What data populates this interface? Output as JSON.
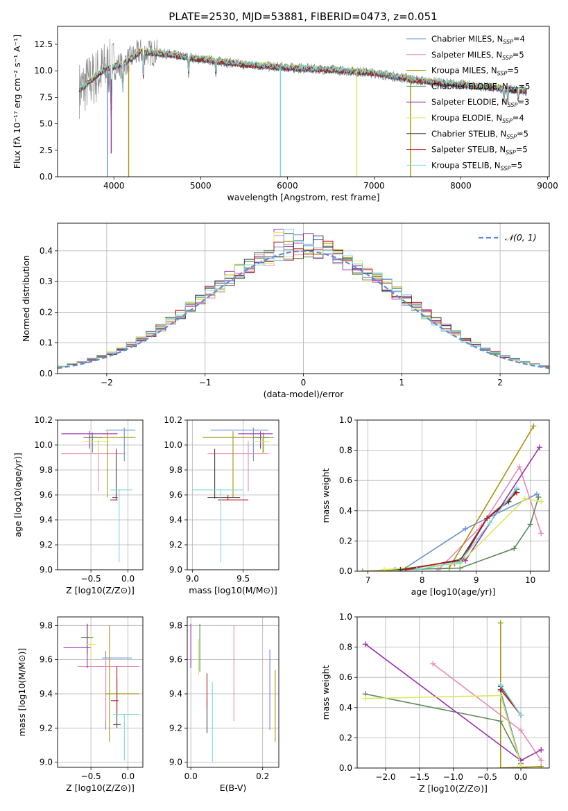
{
  "figure": {
    "title": "PLATE=2530, MJD=53881, FIBERID=0473, z=0.051"
  },
  "chart_data": [
    {
      "id": "spectrum",
      "type": "line",
      "title": "PLATE=2530, MJD=53881, FIBERID=0473, z=0.051",
      "xlabel": "wavelength [Angstrom, rest frame]",
      "ylabel": "Flux [fλ 10⁻¹⁷ erg cm⁻² s⁻¹ A⁻¹]",
      "xlim": [
        3350,
        9020
      ],
      "ylim": [
        0,
        14.2
      ],
      "xticks": [
        4000,
        5000,
        6000,
        7000,
        8000,
        9000
      ],
      "yticks": [
        0.0,
        2.5,
        5.0,
        7.5,
        10.0,
        12.5
      ],
      "grid": false,
      "legend_position": "upper-right",
      "series": [
        {
          "name": "Chabrier MILES, N_SSP=4",
          "color": "#6a8fd6"
        },
        {
          "name": "Salpeter MILES, N_SSP=5",
          "color": "#e889b6"
        },
        {
          "name": "Kroupa MILES, N_SSP=5",
          "color": "#a8920e"
        },
        {
          "name": "Chabrier ELODIE, N_SSP=5",
          "color": "#5d8a5d"
        },
        {
          "name": "Salpeter ELODIE, N_SSP=3",
          "color": "#9a2fb0"
        },
        {
          "name": "Kroupa ELODIE, N_SSP=4",
          "color": "#d9e85a"
        },
        {
          "name": "Chabrier STELIB, N_SSP=5",
          "color": "#404040"
        },
        {
          "name": "Salpeter STELIB, N_SSP=5",
          "color": "#b01818"
        },
        {
          "name": "Kroupa STELIB, N_SSP=5",
          "color": "#7ad8dc"
        }
      ],
      "data_range_x": [
        3600,
        8760
      ],
      "continuum": [
        [
          3600,
          8.2
        ],
        [
          3900,
          10.2
        ],
        [
          4100,
          10.6
        ],
        [
          4300,
          11.8
        ],
        [
          4600,
          11.6
        ],
        [
          5000,
          11.1
        ],
        [
          5500,
          10.6
        ],
        [
          6000,
          10.3
        ],
        [
          6500,
          10.1
        ],
        [
          7000,
          9.8
        ],
        [
          7500,
          9.1
        ],
        [
          8000,
          8.7
        ],
        [
          8500,
          8.3
        ],
        [
          8760,
          8.1
        ]
      ],
      "absorption_dips": [
        [
          3934,
          0.0
        ],
        [
          3969,
          2.2
        ],
        [
          4102,
          6.0
        ],
        [
          4170,
          0.0
        ],
        [
          4340,
          7.5
        ],
        [
          4861,
          8.5
        ],
        [
          5175,
          9.0
        ],
        [
          5920,
          0.0
        ],
        [
          6800,
          0.0
        ],
        [
          7420,
          0.0
        ],
        [
          8498,
          6.5
        ],
        [
          8542,
          6.1
        ],
        [
          8662,
          6.6
        ]
      ]
    },
    {
      "id": "residual-histogram",
      "type": "bar",
      "xlabel": "(data-model)/error",
      "ylabel": "Normed distribution",
      "xlim": [
        -2.5,
        2.5
      ],
      "ylim": [
        0,
        0.49
      ],
      "xticks": [
        -2,
        -1,
        0,
        1,
        2
      ],
      "yticks": [
        0.0,
        0.1,
        0.2,
        0.3,
        0.4
      ],
      "grid": true,
      "legend_position": "upper-right",
      "reference_curve": {
        "name": "𝒩(0, 1)",
        "mean": 0,
        "sigma": 1,
        "color": "#5b8bd9"
      },
      "bin_width": 0.1,
      "bin_start": -2.5,
      "series_count": 9
    },
    {
      "id": "age-vs-Z",
      "type": "scatter",
      "xlabel": "Z [log10(Z/Z⊙)]",
      "ylabel": "age [log10(age/yr)]",
      "xlim": [
        -0.95,
        0.2
      ],
      "ylim": [
        9.0,
        10.2
      ],
      "xticks": [
        -0.5,
        0.0
      ],
      "yticks": [
        9.0,
        9.2,
        9.4,
        9.6,
        9.8,
        10.0,
        10.2
      ],
      "grid": true,
      "points": [
        {
          "series": 0,
          "x": -0.05,
          "y": 10.12,
          "xerr": [
            0.25,
            0.15
          ],
          "yerr": [
            0.25,
            0.02
          ]
        },
        {
          "series": 1,
          "x": -0.4,
          "y": 9.93,
          "xerr": [
            0.5,
            0.35
          ],
          "yerr": [
            0.3,
            0.1
          ]
        },
        {
          "series": 2,
          "x": -0.28,
          "y": 10.06,
          "xerr": [
            0.25,
            0.38
          ],
          "yerr": [
            0.48,
            0.05
          ]
        },
        {
          "series": 3,
          "x": -0.48,
          "y": 10.06,
          "xerr": [
            0.12,
            0.13
          ],
          "yerr": [
            0.12,
            0.04
          ]
        },
        {
          "series": 4,
          "x": -0.52,
          "y": 10.09,
          "xerr": [
            0.38,
            0.38
          ],
          "yerr": [
            0.12,
            0.02
          ]
        },
        {
          "series": 5,
          "x": -0.4,
          "y": 10.03,
          "xerr": [
            0.2,
            0.15
          ],
          "yerr": [
            0.1,
            0.04
          ]
        },
        {
          "series": 6,
          "x": -0.16,
          "y": 9.58,
          "xerr": [
            0.05,
            0.02
          ],
          "yerr": [
            0.01,
            0.39
          ]
        },
        {
          "series": 7,
          "x": -0.16,
          "y": 9.56,
          "xerr": [
            0.08,
            0.02
          ],
          "yerr": [
            0.0,
            0.04
          ]
        },
        {
          "series": 8,
          "x": -0.12,
          "y": 9.64,
          "xerr": [
            0.12,
            0.18
          ],
          "yerr": [
            0.58,
            0.0
          ]
        }
      ]
    },
    {
      "id": "age-vs-mass",
      "type": "scatter",
      "xlabel": "mass [log10(M/M⊙)]",
      "ylabel": "",
      "xlim": [
        8.95,
        9.85
      ],
      "ylim": [
        9.0,
        10.2
      ],
      "xticks": [
        9.0,
        9.5
      ],
      "yticks": [
        9.0,
        9.2,
        9.4,
        9.6,
        9.8,
        10.0,
        10.2
      ],
      "grid": true,
      "points": [
        {
          "series": 0,
          "x": 9.6,
          "y": 10.12,
          "xerr": [
            0.42,
            0.15
          ],
          "yerr": [
            0.25,
            0.02
          ]
        },
        {
          "series": 1,
          "x": 9.55,
          "y": 9.93,
          "xerr": [
            0.4,
            0.2
          ],
          "yerr": [
            0.3,
            0.1
          ]
        },
        {
          "series": 2,
          "x": 9.4,
          "y": 10.06,
          "xerr": [
            0.3,
            0.4
          ],
          "yerr": [
            0.48,
            0.05
          ]
        },
        {
          "series": 3,
          "x": 9.7,
          "y": 10.06,
          "xerr": [
            0.1,
            0.05
          ],
          "yerr": [
            0.12,
            0.04
          ]
        },
        {
          "series": 4,
          "x": 9.67,
          "y": 10.09,
          "xerr": [
            0.22,
            0.12
          ],
          "yerr": [
            0.12,
            0.02
          ]
        },
        {
          "series": 5,
          "x": 9.69,
          "y": 10.03,
          "xerr": [
            0.1,
            0.07
          ],
          "yerr": [
            0.1,
            0.04
          ]
        },
        {
          "series": 6,
          "x": 9.22,
          "y": 9.58,
          "xerr": [
            0.07,
            0.25
          ],
          "yerr": [
            0.01,
            0.39
          ]
        },
        {
          "series": 7,
          "x": 9.35,
          "y": 9.56,
          "xerr": [
            0.1,
            0.2
          ],
          "yerr": [
            0.0,
            0.04
          ]
        },
        {
          "series": 8,
          "x": 9.28,
          "y": 9.64,
          "xerr": [
            0.28,
            0.22
          ],
          "yerr": [
            0.58,
            0.0
          ]
        }
      ]
    },
    {
      "id": "mass-weight-vs-age",
      "type": "line",
      "xlabel": "age [log10(age/yr)]",
      "ylabel": "mass weight",
      "xlim": [
        6.8,
        10.35
      ],
      "ylim": [
        0.0,
        1.0
      ],
      "xticks": [
        7,
        8,
        9,
        10
      ],
      "yticks": [
        0.0,
        0.2,
        0.4,
        0.6,
        0.8,
        1.0
      ],
      "grid": true,
      "series": [
        {
          "index": 0,
          "x": [
            7.6,
            8.8,
            10.12
          ],
          "y": [
            0.0,
            0.28,
            0.51
          ]
        },
        {
          "index": 1,
          "x": [
            8.3,
            9.1,
            9.8,
            10.2
          ],
          "y": [
            0.01,
            0.3,
            0.69,
            0.25
          ]
        },
        {
          "index": 2,
          "x": [
            6.9,
            8.5,
            10.06
          ],
          "y": [
            0.0,
            0.02,
            0.96
          ]
        },
        {
          "index": 3,
          "x": [
            7.5,
            8.7,
            9.7,
            10.0,
            10.15
          ],
          "y": [
            0.01,
            0.02,
            0.15,
            0.31,
            0.49
          ]
        },
        {
          "index": 4,
          "x": [
            8.6,
            8.8,
            10.17
          ],
          "y": [
            0.05,
            0.07,
            0.82
          ]
        },
        {
          "index": 5,
          "x": [
            7.3,
            8.7,
            9.9,
            10.2
          ],
          "y": [
            0.01,
            0.05,
            0.48,
            0.46
          ]
        },
        {
          "index": 6,
          "x": [
            7.6,
            8.7,
            9.2,
            9.6,
            9.75
          ],
          "y": [
            0.01,
            0.07,
            0.35,
            0.46,
            0.54
          ]
        },
        {
          "index": 7,
          "x": [
            7.7,
            8.75,
            9.2,
            9.75
          ],
          "y": [
            0.01,
            0.08,
            0.35,
            0.52
          ]
        },
        {
          "index": 8,
          "x": [
            7.9,
            8.7,
            9.25,
            9.75
          ],
          "y": [
            0.01,
            0.06,
            0.32,
            0.55
          ]
        }
      ]
    },
    {
      "id": "mass-vs-Z",
      "type": "scatter",
      "xlabel": "Z [log10(Z/Z⊙)]",
      "ylabel": "mass [log10(M/M⊙)]",
      "xlim": [
        -0.95,
        0.2
      ],
      "ylim": [
        8.97,
        9.85
      ],
      "xticks": [
        -0.5,
        0.0
      ],
      "yticks": [
        9.0,
        9.2,
        9.4,
        9.6,
        9.8
      ],
      "grid": true,
      "points": [
        {
          "series": 0,
          "x": -0.3,
          "y": 9.61,
          "xerr": [
            0.05,
            0.35
          ],
          "yerr": [
            0.42,
            0.04
          ]
        },
        {
          "series": 1,
          "x": -0.3,
          "y": 9.56,
          "xerr": [
            0.38,
            0.45
          ],
          "yerr": [
            0.32,
            0.05
          ]
        },
        {
          "series": 2,
          "x": -0.25,
          "y": 9.4,
          "xerr": [
            0.05,
            0.4
          ],
          "yerr": [
            0.28,
            0.4
          ]
        },
        {
          "series": 3,
          "x": -0.55,
          "y": 9.73,
          "xerr": [
            0.08,
            0.08
          ],
          "yerr": [
            0.1,
            0.08
          ]
        },
        {
          "series": 4,
          "x": -0.55,
          "y": 9.67,
          "xerr": [
            0.32,
            0.05
          ],
          "yerr": [
            0.12,
            0.14
          ]
        },
        {
          "series": 5,
          "x": -0.5,
          "y": 9.69,
          "xerr": [
            0.07,
            0.07
          ],
          "yerr": [
            0.1,
            0.08
          ]
        },
        {
          "series": 6,
          "x": -0.15,
          "y": 9.22,
          "xerr": [
            0.05,
            0.05
          ],
          "yerr": [
            0.02,
            0.27
          ]
        },
        {
          "series": 7,
          "x": -0.15,
          "y": 9.36,
          "xerr": [
            0.08,
            0.02
          ],
          "yerr": [
            0.08,
            0.2
          ]
        },
        {
          "series": 8,
          "x": -0.05,
          "y": 9.28,
          "xerr": [
            0.15,
            0.2
          ],
          "yerr": [
            0.27,
            0.0
          ]
        }
      ]
    },
    {
      "id": "mass-vs-ebv",
      "type": "scatter",
      "xlabel": "E(B-V)",
      "ylabel": "",
      "xlim": [
        -0.01,
        0.245
      ],
      "ylim": [
        8.97,
        9.85
      ],
      "xticks": [
        0.0,
        0.2
      ],
      "yticks": [
        9.0,
        9.2,
        9.4,
        9.6,
        9.8
      ],
      "grid": true,
      "points": [
        {
          "series": 0,
          "x": 0.22,
          "y": 9.41,
          "yerr": [
            0.22,
            0.25
          ]
        },
        {
          "series": 1,
          "x": 0.12,
          "y": 9.5,
          "yerr": [
            0.26,
            0.3
          ]
        },
        {
          "series": 2,
          "x": 0.235,
          "y": 9.35,
          "yerr": [
            0.23,
            0.19
          ]
        },
        {
          "series": 3,
          "x": 0.025,
          "y": 9.65,
          "yerr": [
            0.12,
            0.16
          ]
        },
        {
          "series": 4,
          "x": 0.0,
          "y": 9.67,
          "yerr": [
            0.12,
            0.14
          ]
        },
        {
          "series": 5,
          "x": 0.022,
          "y": 9.62,
          "yerr": [
            0.11,
            0.1
          ]
        },
        {
          "series": 6,
          "x": 0.045,
          "y": 9.25,
          "yerr": [
            0.08,
            0.12
          ]
        },
        {
          "series": 7,
          "x": 0.045,
          "y": 9.4,
          "yerr": [
            0.08,
            0.12
          ]
        },
        {
          "series": 8,
          "x": 0.06,
          "y": 9.25,
          "yerr": [
            0.25,
            0.22
          ]
        }
      ]
    },
    {
      "id": "mass-weight-vs-Z",
      "type": "line",
      "xlabel": "Z [log10(Z/Z⊙)]",
      "ylabel": "mass weight",
      "xlim": [
        -2.42,
        0.42
      ],
      "ylim": [
        0.0,
        1.0
      ],
      "xticks": [
        -2.0,
        -1.5,
        -1.0,
        -0.5,
        0.0
      ],
      "yticks": [
        0.0,
        0.2,
        0.4,
        0.6,
        0.8,
        1.0
      ],
      "grid": true,
      "series": [
        {
          "index": 0,
          "x": [
            -0.3,
            0.0
          ],
          "y": [
            0.51,
            0.03
          ]
        },
        {
          "index": 1,
          "x": [
            -1.3,
            0.0,
            0.3
          ],
          "y": [
            0.69,
            0.25,
            0.05
          ]
        },
        {
          "index": 2,
          "x": [
            -0.3,
            -0.3,
            0.3
          ],
          "y": [
            0.96,
            0.0,
            0.01
          ]
        },
        {
          "index": 3,
          "x": [
            -2.3,
            -0.3,
            0.0
          ],
          "y": [
            0.49,
            0.31,
            0.05
          ]
        },
        {
          "index": 4,
          "x": [
            -2.3,
            0.0,
            0.3
          ],
          "y": [
            0.82,
            0.05,
            0.12
          ]
        },
        {
          "index": 5,
          "x": [
            -2.3,
            -0.3,
            0.0
          ],
          "y": [
            0.46,
            0.48,
            0.02
          ]
        },
        {
          "index": 6,
          "x": [
            -0.3,
            0.0
          ],
          "y": [
            0.54,
            0.35
          ]
        },
        {
          "index": 7,
          "x": [
            -0.3,
            0.0
          ],
          "y": [
            0.52,
            0.35
          ]
        },
        {
          "index": 8,
          "x": [
            -0.3,
            0.0
          ],
          "y": [
            0.55,
            0.35
          ]
        }
      ]
    }
  ]
}
